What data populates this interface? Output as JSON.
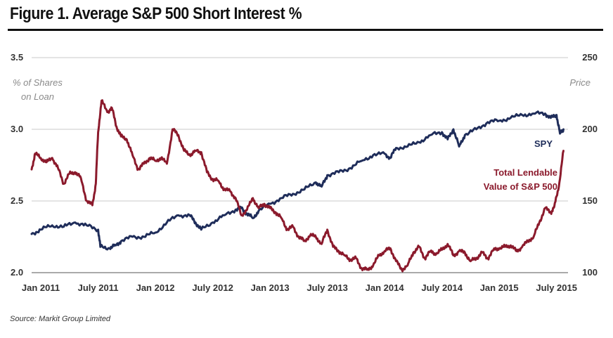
{
  "title": "Figure 1. Average S&P 500 Short Interest %",
  "source": "Source: Markit Group Limited",
  "colors": {
    "spy": "#1f2d5a",
    "lendable": "#8b1a2c",
    "grid": "#c8c8c8"
  },
  "chart_data": {
    "type": "line",
    "title": "Figure 1. Average S&P 500 Short Interest %",
    "ylabel": "% of Shares on Loan",
    "y2label": "Price",
    "ylim": [
      2.0,
      3.5
    ],
    "y2lim": [
      100,
      250
    ],
    "yticks": [
      "3.5",
      "3.0",
      "2.5",
      "2.0"
    ],
    "y2ticks": [
      "250",
      "200",
      "150",
      "100"
    ],
    "xlim": [
      2010.92,
      2015.6
    ],
    "xtick_labels": [
      "Jan 2011",
      "July 2011",
      "Jan 2012",
      "July 2012",
      "Jan 2013",
      "July 2013",
      "Jan 2014",
      "July 2014",
      "Jan 2015",
      "July 2015"
    ],
    "xtick_positions": [
      2011.0,
      2011.5,
      2012.0,
      2012.5,
      2013.0,
      2013.5,
      2014.0,
      2014.5,
      2015.0,
      2015.5
    ],
    "series": [
      {
        "name": "SPY",
        "axis": "right",
        "x": [
          2010.92,
          2011.0,
          2011.1,
          2011.2,
          2011.3,
          2011.4,
          2011.5,
          2011.52,
          2011.6,
          2011.65,
          2011.7,
          2011.8,
          2011.9,
          2012.0,
          2012.1,
          2012.2,
          2012.3,
          2012.35,
          2012.4,
          2012.5,
          2012.6,
          2012.7,
          2012.75,
          2012.8,
          2012.85,
          2012.9,
          2013.0,
          2013.1,
          2013.2,
          2013.3,
          2013.4,
          2013.45,
          2013.5,
          2013.6,
          2013.7,
          2013.8,
          2013.9,
          2014.0,
          2014.05,
          2014.1,
          2014.2,
          2014.3,
          2014.4,
          2014.5,
          2014.55,
          2014.6,
          2014.65,
          2014.7,
          2014.8,
          2014.9,
          2015.0,
          2015.1,
          2015.2,
          2015.3,
          2015.4,
          2015.45,
          2015.5,
          2015.53,
          2015.56
        ],
        "values": [
          127,
          130,
          133,
          132,
          135,
          133,
          130,
          118,
          117,
          119,
          122,
          125,
          125,
          128,
          135,
          140,
          140,
          135,
          130,
          135,
          140,
          144,
          145,
          141,
          138,
          143,
          148,
          152,
          155,
          158,
          163,
          160,
          168,
          170,
          173,
          178,
          182,
          183,
          180,
          187,
          188,
          191,
          196,
          198,
          193,
          200,
          188,
          196,
          200,
          205,
          206,
          208,
          210,
          211,
          211,
          208,
          210,
          197,
          200
        ]
      },
      {
        "name": "Total Lendable Value of S&P 500",
        "axis": "left",
        "x": [
          2010.92,
          2010.95,
          2011.0,
          2011.05,
          2011.1,
          2011.15,
          2011.2,
          2011.25,
          2011.3,
          2011.35,
          2011.4,
          2011.45,
          2011.48,
          2011.5,
          2011.53,
          2011.58,
          2011.62,
          2011.66,
          2011.7,
          2011.75,
          2011.8,
          2011.85,
          2011.9,
          2011.95,
          2012.0,
          2012.05,
          2012.1,
          2012.15,
          2012.2,
          2012.25,
          2012.3,
          2012.35,
          2012.4,
          2012.45,
          2012.5,
          2012.55,
          2012.6,
          2012.65,
          2012.7,
          2012.75,
          2012.8,
          2012.85,
          2012.9,
          2012.95,
          2013.0,
          2013.05,
          2013.1,
          2013.15,
          2013.2,
          2013.25,
          2013.3,
          2013.35,
          2013.4,
          2013.45,
          2013.5,
          2013.55,
          2013.6,
          2013.65,
          2013.7,
          2013.75,
          2013.8,
          2013.85,
          2013.9,
          2013.95,
          2014.0,
          2014.05,
          2014.1,
          2014.15,
          2014.2,
          2014.25,
          2014.3,
          2014.35,
          2014.4,
          2014.45,
          2014.5,
          2014.55,
          2014.6,
          2014.65,
          2014.7,
          2014.75,
          2014.8,
          2014.85,
          2014.9,
          2014.95,
          2015.0,
          2015.05,
          2015.1,
          2015.15,
          2015.2,
          2015.25,
          2015.3,
          2015.35,
          2015.4,
          2015.45,
          2015.48,
          2015.52,
          2015.56
        ],
        "values": [
          2.72,
          2.83,
          2.8,
          2.77,
          2.8,
          2.73,
          2.62,
          2.69,
          2.7,
          2.66,
          2.5,
          2.47,
          2.62,
          2.98,
          3.2,
          3.12,
          3.15,
          3.02,
          2.95,
          2.93,
          2.82,
          2.72,
          2.76,
          2.8,
          2.78,
          2.8,
          2.76,
          3.0,
          2.96,
          2.85,
          2.82,
          2.85,
          2.84,
          2.7,
          2.65,
          2.64,
          2.58,
          2.57,
          2.52,
          2.4,
          2.44,
          2.52,
          2.45,
          2.48,
          2.45,
          2.42,
          2.38,
          2.3,
          2.32,
          2.25,
          2.22,
          2.26,
          2.25,
          2.2,
          2.3,
          2.18,
          2.15,
          2.12,
          2.09,
          2.1,
          2.03,
          2.02,
          2.05,
          2.12,
          2.15,
          2.17,
          2.08,
          2.02,
          2.05,
          2.14,
          2.18,
          2.1,
          2.15,
          2.13,
          2.16,
          2.2,
          2.12,
          2.15,
          2.14,
          2.08,
          2.1,
          2.14,
          2.1,
          2.16,
          2.17,
          2.18,
          2.19,
          2.15,
          2.18,
          2.22,
          2.25,
          2.35,
          2.45,
          2.42,
          2.46,
          2.6,
          2.85
        ]
      }
    ],
    "annotations": {
      "spy_label": "SPY",
      "lendable_label_line1": "Total Lendable",
      "lendable_label_line2": "Value of S&P 500"
    }
  }
}
